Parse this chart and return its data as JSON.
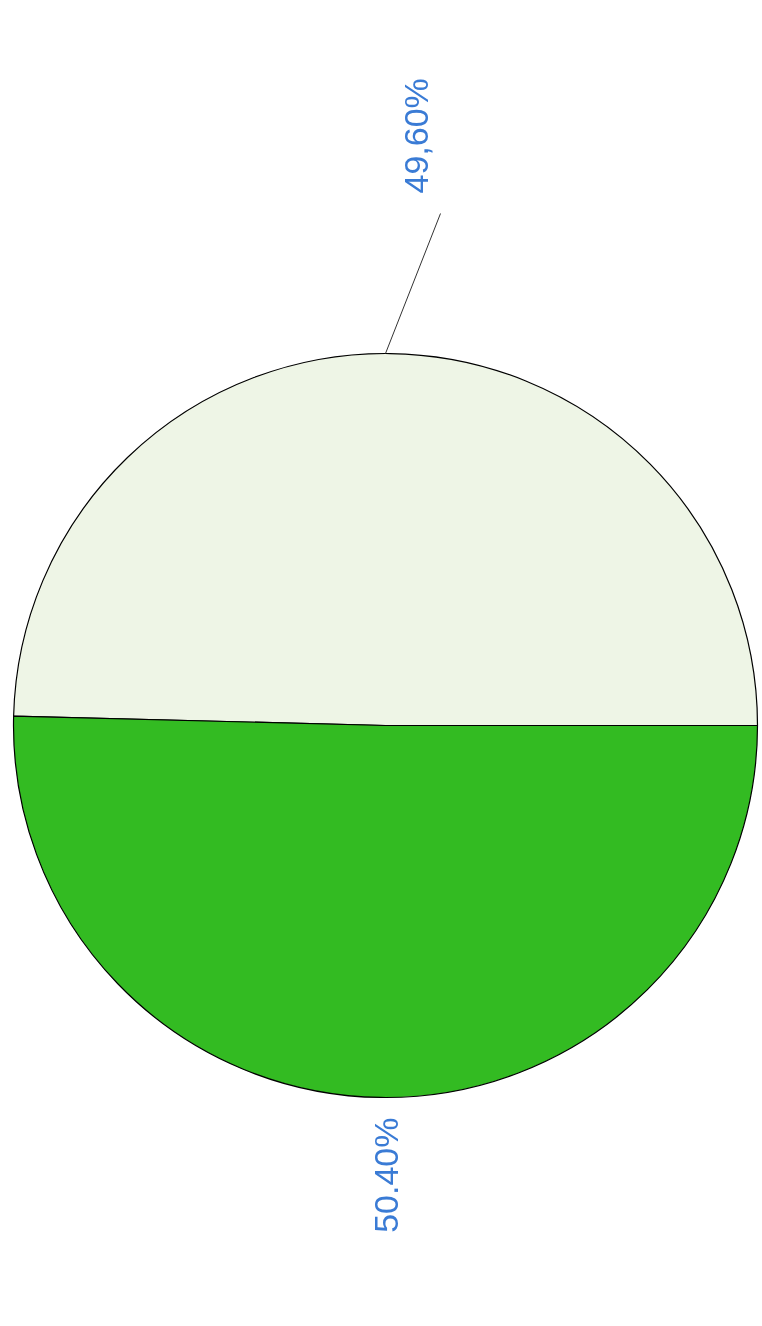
{
  "chart_data": {
    "type": "pie",
    "categories": [
      null,
      null
    ],
    "values": [
      49.6,
      50.4
    ],
    "colors": [
      "#eef5e6",
      "#33bb22"
    ],
    "value_labels": [
      "49,60%",
      "50.40%"
    ]
  }
}
